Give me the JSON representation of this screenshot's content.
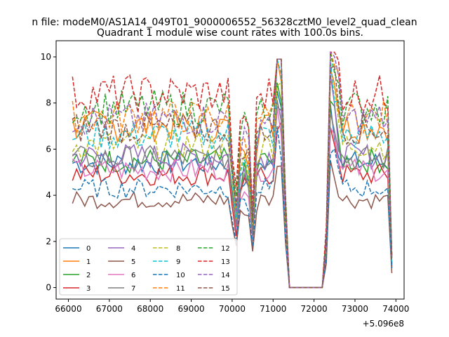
{
  "chart_data": {
    "type": "line",
    "suptitle": "n file: modeM0/AS1A14_049T01_9000006552_56328cztM0_level2_quad_clean",
    "title": "Quadrant 1 module wise count rates with 100.0s bins.",
    "xlabel": "",
    "ylabel": "",
    "x_offset_label": "+5.096e8",
    "xlim": [
      65700,
      74200
    ],
    "ylim": [
      -0.5,
      10.7
    ],
    "xticks": [
      66000,
      67000,
      68000,
      69000,
      70000,
      71000,
      72000,
      73000,
      74000
    ],
    "yticks": [
      0,
      2,
      4,
      6,
      8,
      10
    ],
    "legend_placement": "lower-left",
    "legend_ncol": 4,
    "x": [
      66100,
      66200,
      66300,
      66400,
      66500,
      66600,
      66700,
      66800,
      66900,
      67000,
      67100,
      67200,
      67300,
      67400,
      67500,
      67600,
      67700,
      67800,
      67900,
      68000,
      68100,
      68200,
      68300,
      68400,
      68500,
      68600,
      68700,
      68800,
      68900,
      69000,
      69100,
      69200,
      69300,
      69400,
      69500,
      69600,
      69700,
      69800,
      69900,
      70000,
      70100,
      70200,
      70300,
      70400,
      70500,
      70600,
      70700,
      70800,
      70900,
      71000,
      71100,
      71200,
      71300,
      71400,
      71500,
      71600,
      71700,
      71800,
      71900,
      72000,
      72100,
      72200,
      72300,
      72400,
      72500,
      72600,
      72700,
      72800,
      72900,
      73000,
      73100,
      73200,
      73300,
      73400,
      73500,
      73600,
      73700,
      73800,
      73900
    ],
    "series": [
      {
        "name": "0",
        "color": "#1f77b4",
        "dash": "solid",
        "level": 5.4
      },
      {
        "name": "1",
        "color": "#ff7f0e",
        "dash": "solid",
        "level": 7.0
      },
      {
        "name": "2",
        "color": "#2ca02c",
        "dash": "solid",
        "level": 5.5
      },
      {
        "name": "3",
        "color": "#d62728",
        "dash": "solid",
        "level": 4.9
      },
      {
        "name": "4",
        "color": "#9467bd",
        "dash": "solid",
        "level": 5.7
      },
      {
        "name": "5",
        "color": "#8c564b",
        "dash": "solid",
        "level": 3.8
      },
      {
        "name": "6",
        "color": "#e377c2",
        "dash": "solid",
        "level": 5.1
      },
      {
        "name": "7",
        "color": "#7f7f7f",
        "dash": "solid",
        "level": 5.6
      },
      {
        "name": "8",
        "color": "#bcbd22",
        "dash": "dashed",
        "level": 6.2
      },
      {
        "name": "9",
        "color": "#17becf",
        "dash": "dashed",
        "level": 6.6
      },
      {
        "name": "10",
        "color": "#1f77b4",
        "dash": "dashed",
        "level": 4.3
      },
      {
        "name": "11",
        "color": "#ff7f0e",
        "dash": "dashed",
        "level": 7.4
      },
      {
        "name": "12",
        "color": "#2ca02c",
        "dash": "dashed",
        "level": 7.8
      },
      {
        "name": "13",
        "color": "#d62728",
        "dash": "dashed",
        "level": 8.4
      },
      {
        "name": "14",
        "color": "#9467bd",
        "dash": "dashed",
        "level": 7.3
      },
      {
        "name": "15",
        "color": "#8c564b",
        "dash": "dashed",
        "level": 6.9
      }
    ]
  }
}
